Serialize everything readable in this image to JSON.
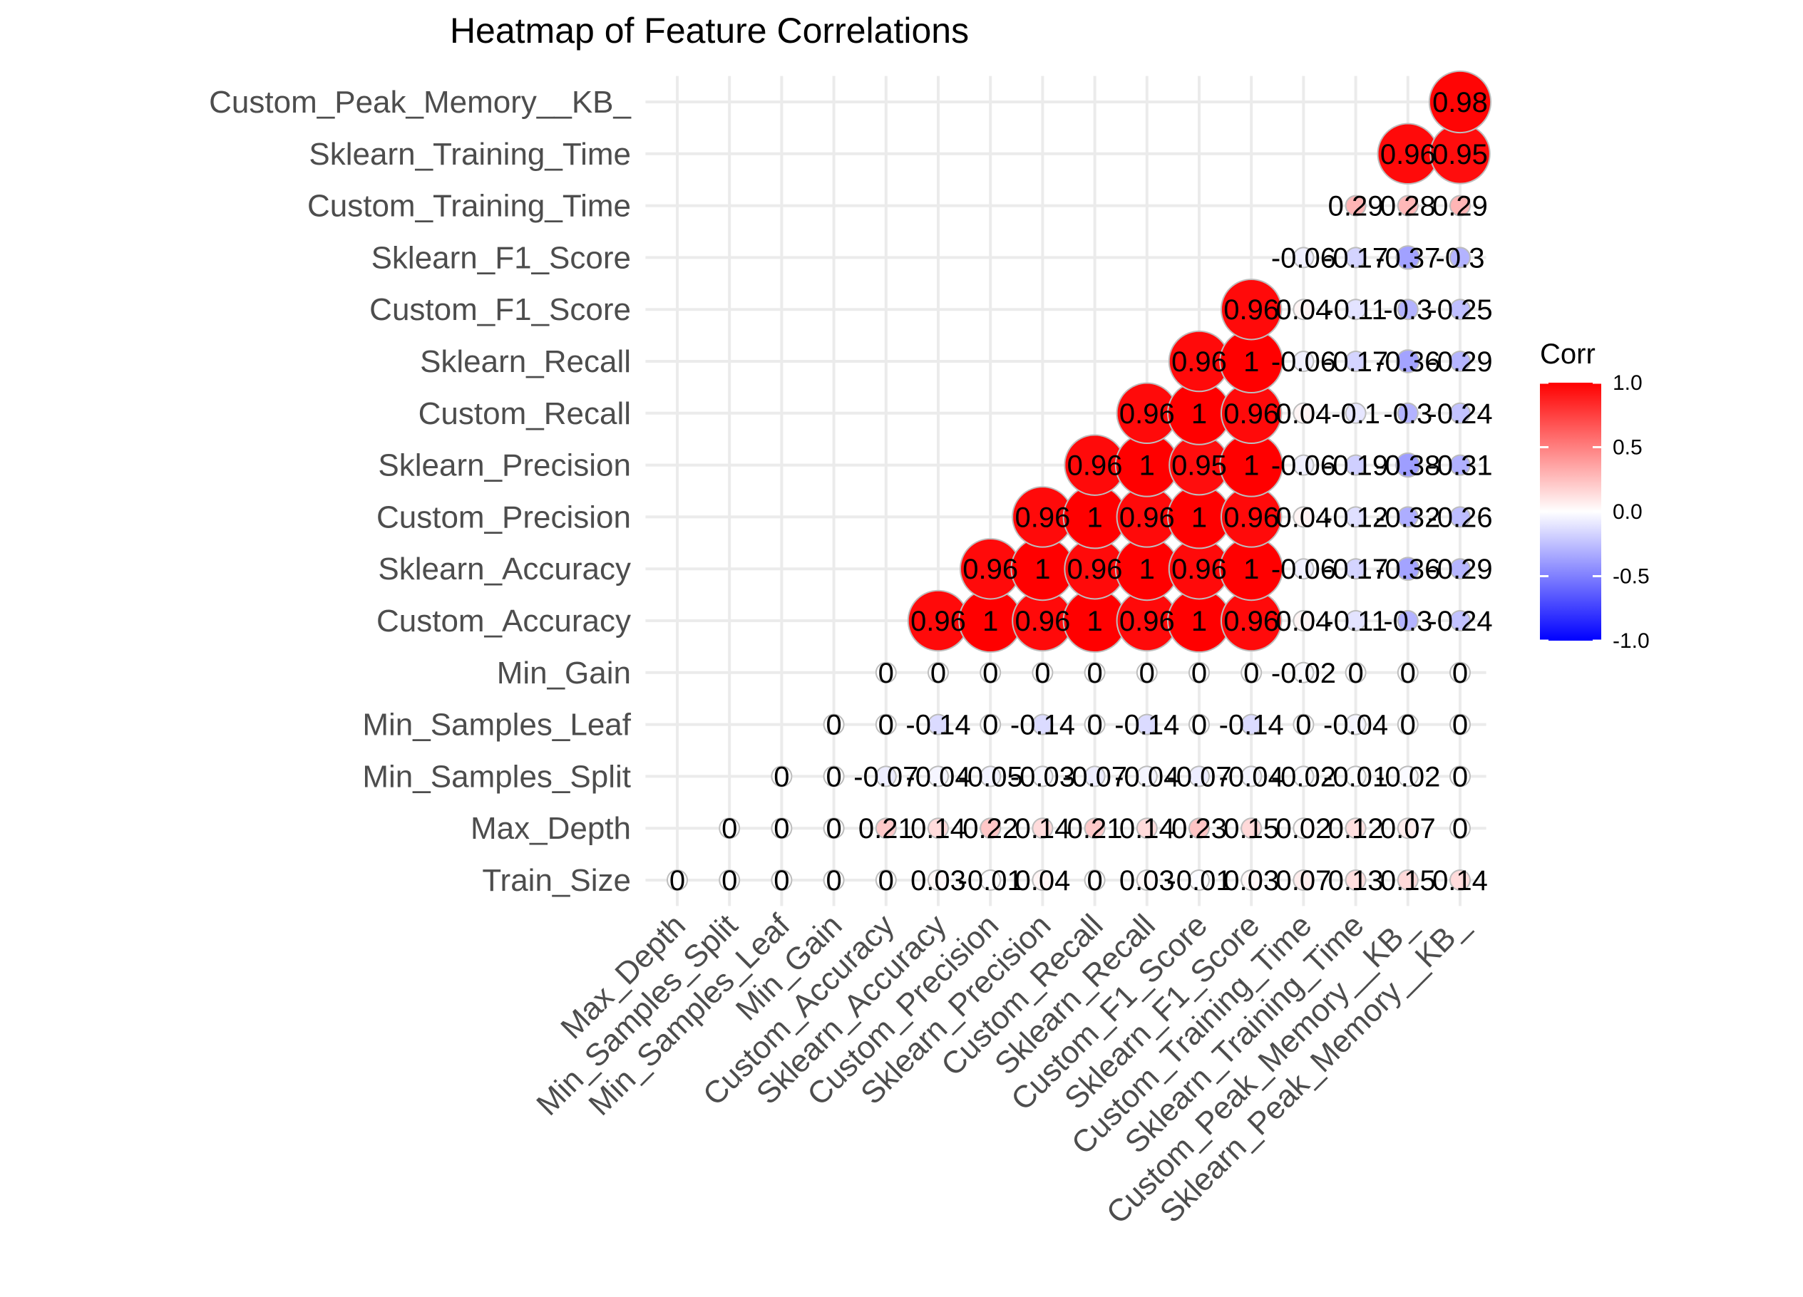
{
  "chart_data": {
    "type": "heatmap",
    "style": "lower-triangle circle correlogram",
    "title": "Heatmap of Feature Correlations",
    "xlabel": "",
    "ylabel": "",
    "x_labels": [
      "Max_Depth",
      "Min_Samples_Split",
      "Min_Samples_Leaf",
      "Min_Gain",
      "Custom_Accuracy",
      "Sklearn_Accuracy",
      "Custom_Precision",
      "Sklearn_Precision",
      "Custom_Recall",
      "Sklearn_Recall",
      "Custom_F1_Score",
      "Sklearn_F1_Score",
      "Custom_Training_Time",
      "Sklearn_Training_Time",
      "Custom_Peak_Memory__KB_",
      "Sklearn_Peak_Memory__KB_"
    ],
    "y_labels": [
      "Train_Size",
      "Max_Depth",
      "Min_Samples_Split",
      "Min_Samples_Leaf",
      "Min_Gain",
      "Custom_Accuracy",
      "Sklearn_Accuracy",
      "Custom_Precision",
      "Sklearn_Precision",
      "Custom_Recall",
      "Sklearn_Recall",
      "Custom_F1_Score",
      "Sklearn_F1_Score",
      "Custom_Training_Time",
      "Sklearn_Training_Time",
      "Custom_Peak_Memory__KB_"
    ],
    "rows": [
      {
        "label": "Train_Size",
        "values": [
          0,
          0,
          0,
          0,
          0,
          0.03,
          -0.01,
          0.04,
          0,
          0.03,
          -0.01,
          0.03,
          0.07,
          0.13,
          0.15,
          0.14
        ]
      },
      {
        "label": "Max_Depth",
        "values": [
          null,
          0,
          0,
          0,
          0.21,
          0.14,
          0.22,
          0.14,
          0.21,
          0.14,
          0.23,
          0.15,
          0.02,
          0.12,
          0.07,
          0
        ]
      },
      {
        "label": "Min_Samples_Split",
        "values": [
          null,
          null,
          0,
          0,
          -0.07,
          -0.04,
          -0.05,
          -0.03,
          -0.07,
          -0.04,
          -0.07,
          -0.04,
          -0.02,
          -0.01,
          -0.02,
          0
        ]
      },
      {
        "label": "Min_Samples_Leaf",
        "values": [
          null,
          null,
          null,
          0,
          0,
          -0.14,
          0,
          -0.14,
          0,
          -0.14,
          0,
          -0.14,
          0,
          -0.04,
          0,
          0
        ]
      },
      {
        "label": "Min_Gain",
        "values": [
          null,
          null,
          null,
          null,
          0,
          0,
          0,
          0,
          0,
          0,
          0,
          0,
          -0.02,
          0,
          0,
          0
        ]
      },
      {
        "label": "Custom_Accuracy",
        "values": [
          null,
          null,
          null,
          null,
          null,
          0.96,
          1,
          0.96,
          1,
          0.96,
          1,
          0.96,
          0.04,
          -0.11,
          -0.3,
          -0.24
        ]
      },
      {
        "label": "Sklearn_Accuracy",
        "values": [
          null,
          null,
          null,
          null,
          null,
          null,
          0.96,
          1,
          0.96,
          1,
          0.96,
          1,
          -0.06,
          -0.17,
          -0.36,
          -0.29
        ]
      },
      {
        "label": "Custom_Precision",
        "values": [
          null,
          null,
          null,
          null,
          null,
          null,
          null,
          0.96,
          1,
          0.96,
          1,
          0.96,
          0.04,
          -0.12,
          -0.32,
          -0.26
        ]
      },
      {
        "label": "Sklearn_Precision",
        "values": [
          null,
          null,
          null,
          null,
          null,
          null,
          null,
          null,
          0.96,
          1,
          0.95,
          1,
          -0.06,
          -0.19,
          -0.38,
          -0.31
        ]
      },
      {
        "label": "Custom_Recall",
        "values": [
          null,
          null,
          null,
          null,
          null,
          null,
          null,
          null,
          null,
          0.96,
          1,
          0.96,
          0.04,
          -0.1,
          -0.3,
          -0.24
        ]
      },
      {
        "label": "Sklearn_Recall",
        "values": [
          null,
          null,
          null,
          null,
          null,
          null,
          null,
          null,
          null,
          null,
          0.96,
          1,
          -0.06,
          -0.17,
          -0.36,
          -0.29
        ]
      },
      {
        "label": "Custom_F1_Score",
        "values": [
          null,
          null,
          null,
          null,
          null,
          null,
          null,
          null,
          null,
          null,
          null,
          0.96,
          0.04,
          -0.11,
          -0.3,
          -0.25
        ]
      },
      {
        "label": "Sklearn_F1_Score",
        "values": [
          null,
          null,
          null,
          null,
          null,
          null,
          null,
          null,
          null,
          null,
          null,
          null,
          -0.06,
          -0.17,
          -0.37,
          -0.3
        ]
      },
      {
        "label": "Custom_Training_Time",
        "values": [
          null,
          null,
          null,
          null,
          null,
          null,
          null,
          null,
          null,
          null,
          null,
          null,
          null,
          0.29,
          0.28,
          0.29
        ]
      },
      {
        "label": "Sklearn_Training_Time",
        "values": [
          null,
          null,
          null,
          null,
          null,
          null,
          null,
          null,
          null,
          null,
          null,
          null,
          null,
          null,
          0.96,
          0.95
        ]
      },
      {
        "label": "Custom_Peak_Memory__KB_",
        "values": [
          null,
          null,
          null,
          null,
          null,
          null,
          null,
          null,
          null,
          null,
          null,
          null,
          null,
          null,
          null,
          0.98
        ]
      }
    ],
    "legend": {
      "title": "Corr",
      "position": "right",
      "ticks": [
        "1.0",
        "0.5",
        "0.0",
        "-0.5",
        "-1.0"
      ],
      "low_color": "#0000ff",
      "mid_color": "#ffffff",
      "high_color": "#ff0000"
    },
    "grid": true
  }
}
